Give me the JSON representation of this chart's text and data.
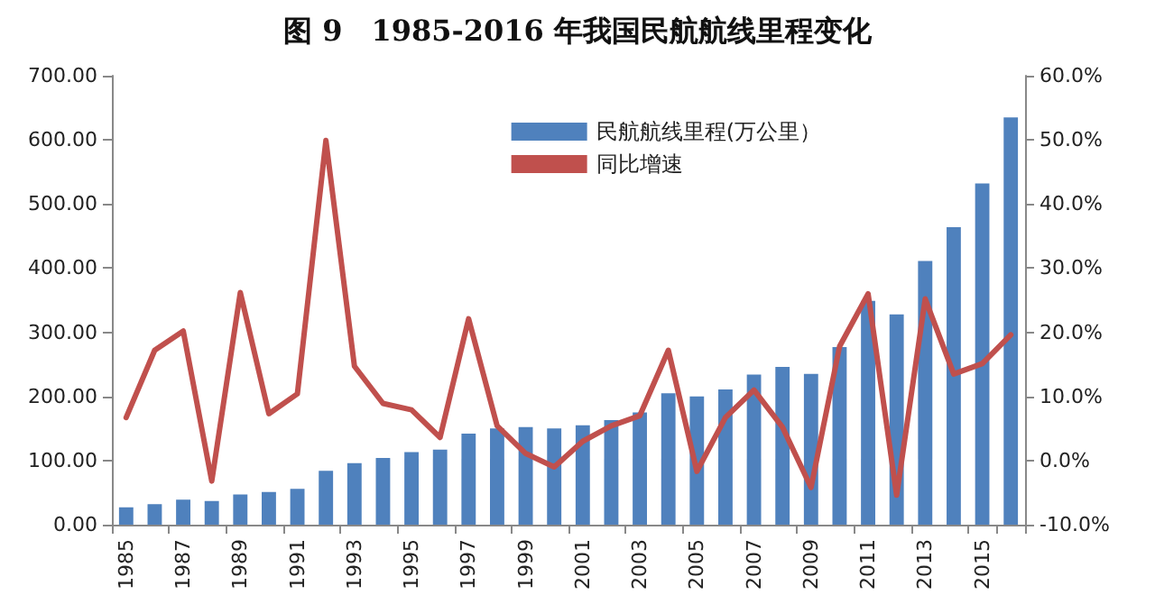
{
  "chart_data": {
    "type": "bar",
    "title": "图 9　1985-2016 年我国民航航线里程变化",
    "categories": [
      "1985",
      null,
      "1987",
      null,
      "1989",
      null,
      "1991",
      null,
      "1993",
      null,
      "1995",
      null,
      "1997",
      null,
      "1999",
      null,
      "2001",
      null,
      "2003",
      null,
      "2005",
      null,
      "2007",
      null,
      "2009",
      null,
      "2011",
      null,
      "2013",
      null,
      "2015",
      null
    ],
    "series": [
      {
        "name": "民航航线里程(万公里）",
        "color": "#4f81bd",
        "values": [
          27,
          32,
          39,
          37,
          47,
          51,
          56,
          84,
          96,
          104,
          113,
          117,
          142,
          150,
          152,
          150,
          155,
          163,
          175,
          205,
          200,
          211,
          234,
          246,
          235,
          277,
          349,
          328,
          411,
          464,
          532,
          635
        ]
      },
      {
        "name": "同比增速",
        "type": "line",
        "axis": "y2",
        "color": "#c0504d",
        "values": [
          6.7,
          17.2,
          20.2,
          -3.2,
          26.2,
          7.3,
          10.4,
          49.9,
          14.7,
          8.9,
          7.9,
          3.6,
          22.1,
          5.4,
          1.1,
          -1.0,
          3.0,
          5.4,
          7.0,
          17.2,
          -1.7,
          6.7,
          11.0,
          5.2,
          -4.2,
          17.8,
          26.0,
          -5.4,
          25.2,
          13.5,
          15.1,
          19.6
        ]
      }
    ],
    "ylim": [
      0,
      700
    ],
    "yticks": [
      {
        "value": 0,
        "label": "0.00"
      },
      {
        "value": 100,
        "label": "100.00"
      },
      {
        "value": 200,
        "label": "200.00"
      },
      {
        "value": 300,
        "label": "300.00"
      },
      {
        "value": 400,
        "label": "400.00"
      },
      {
        "value": 500,
        "label": "500.00"
      },
      {
        "value": 600,
        "label": "600.00"
      },
      {
        "value": 700,
        "label": "700.00"
      }
    ],
    "y2lim": [
      -10,
      60
    ],
    "y2ticks": [
      {
        "value": -10,
        "label": "-10.0%"
      },
      {
        "value": 0,
        "label": "0.0%"
      },
      {
        "value": 10,
        "label": "10.0%"
      },
      {
        "value": 20,
        "label": "20.0%"
      },
      {
        "value": 30,
        "label": "30.0%"
      },
      {
        "value": 40,
        "label": "40.0%"
      },
      {
        "value": 50,
        "label": "50.0%"
      },
      {
        "value": 60,
        "label": "60.0%"
      }
    ],
    "grid": false,
    "legend": "top right",
    "marker": "none",
    "line_style": "solid"
  }
}
